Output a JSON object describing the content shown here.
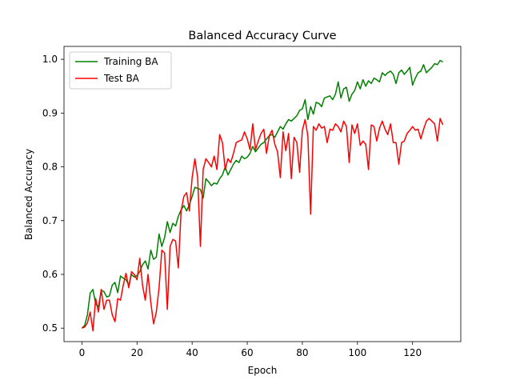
{
  "chart_data": {
    "type": "line",
    "title": "Balanced Accuracy Curve",
    "xlabel": "Epoch",
    "ylabel": "Balanced Accuracy",
    "xlim": [
      -6.5,
      137.5
    ],
    "ylim": [
      0.475,
      1.024
    ],
    "xticks": [
      "0",
      "20",
      "40",
      "60",
      "80",
      "100",
      "120"
    ],
    "yticks": [
      "0.5",
      "0.6",
      "0.7",
      "0.8",
      "0.9",
      "1.0"
    ],
    "grid": false,
    "legend": "upper-left",
    "x": [
      0,
      1,
      2,
      3,
      4,
      5,
      6,
      7,
      8,
      9,
      10,
      11,
      12,
      13,
      14,
      15,
      16,
      17,
      18,
      19,
      20,
      21,
      22,
      23,
      24,
      25,
      26,
      27,
      28,
      29,
      30,
      31,
      32,
      33,
      34,
      35,
      36,
      37,
      38,
      39,
      40,
      41,
      42,
      43,
      44,
      45,
      46,
      47,
      48,
      49,
      50,
      51,
      52,
      53,
      54,
      55,
      56,
      57,
      58,
      59,
      60,
      61,
      62,
      63,
      64,
      65,
      66,
      67,
      68,
      69,
      70,
      71,
      72,
      73,
      74,
      75,
      76,
      77,
      78,
      79,
      80,
      81,
      82,
      83,
      84,
      85,
      86,
      87,
      88,
      89,
      90,
      91,
      92,
      93,
      94,
      95,
      96,
      97,
      98,
      99,
      100,
      101,
      102,
      103,
      104,
      105,
      106,
      107,
      108,
      109,
      110,
      111,
      112,
      113,
      114,
      115,
      116,
      117,
      118,
      119,
      120,
      121,
      122,
      123,
      124,
      125,
      126,
      127,
      128,
      129,
      130,
      131
    ],
    "series": [
      {
        "name": "Training BA",
        "color": "#008000",
        "values": [
          0.5,
          0.505,
          0.525,
          0.565,
          0.572,
          0.545,
          0.54,
          0.57,
          0.568,
          0.558,
          0.56,
          0.58,
          0.585,
          0.566,
          0.597,
          0.593,
          0.59,
          0.58,
          0.6,
          0.595,
          0.598,
          0.605,
          0.618,
          0.625,
          0.61,
          0.645,
          0.628,
          0.632,
          0.675,
          0.652,
          0.668,
          0.698,
          0.678,
          0.695,
          0.69,
          0.708,
          0.72,
          0.728,
          0.718,
          0.73,
          0.745,
          0.762,
          0.76,
          0.758,
          0.742,
          0.778,
          0.772,
          0.765,
          0.77,
          0.768,
          0.778,
          0.785,
          0.8,
          0.785,
          0.795,
          0.805,
          0.812,
          0.808,
          0.82,
          0.815,
          0.818,
          0.825,
          0.838,
          0.828,
          0.835,
          0.842,
          0.845,
          0.852,
          0.858,
          0.86,
          0.855,
          0.865,
          0.875,
          0.87,
          0.88,
          0.888,
          0.885,
          0.89,
          0.895,
          0.905,
          0.908,
          0.925,
          0.888,
          0.912,
          0.898,
          0.92,
          0.918,
          0.912,
          0.928,
          0.93,
          0.932,
          0.925,
          0.935,
          0.958,
          0.928,
          0.945,
          0.948,
          0.922,
          0.935,
          0.942,
          0.958,
          0.945,
          0.962,
          0.95,
          0.96,
          0.955,
          0.965,
          0.962,
          0.958,
          0.975,
          0.97,
          0.975,
          0.978,
          0.972,
          0.955,
          0.975,
          0.98,
          0.972,
          0.978,
          0.985,
          0.952,
          0.965,
          0.975,
          0.978,
          0.99,
          0.975,
          0.98,
          0.985,
          0.992,
          0.99,
          0.998,
          0.995
        ]
      },
      {
        "name": "Test BA",
        "color": "#ff0000",
        "values": [
          0.5,
          0.502,
          0.51,
          0.53,
          0.495,
          0.555,
          0.53,
          0.572,
          0.535,
          0.552,
          0.552,
          0.525,
          0.512,
          0.555,
          0.552,
          0.58,
          0.602,
          0.575,
          0.605,
          0.6,
          0.59,
          0.63,
          0.58,
          0.552,
          0.6,
          0.548,
          0.508,
          0.53,
          0.575,
          0.645,
          0.64,
          0.535,
          0.652,
          0.665,
          0.662,
          0.612,
          0.718,
          0.745,
          0.752,
          0.718,
          0.78,
          0.815,
          0.78,
          0.652,
          0.795,
          0.815,
          0.808,
          0.8,
          0.82,
          0.795,
          0.86,
          0.845,
          0.795,
          0.815,
          0.808,
          0.825,
          0.845,
          0.848,
          0.85,
          0.865,
          0.852,
          0.832,
          0.88,
          0.832,
          0.848,
          0.862,
          0.87,
          0.825,
          0.858,
          0.868,
          0.842,
          0.828,
          0.78,
          0.865,
          0.83,
          0.862,
          0.778,
          0.855,
          0.845,
          0.79,
          0.868,
          0.888,
          0.858,
          0.712,
          0.875,
          0.868,
          0.88,
          0.872,
          0.875,
          0.845,
          0.87,
          0.868,
          0.88,
          0.875,
          0.865,
          0.885,
          0.875,
          0.808,
          0.878,
          0.862,
          0.88,
          0.84,
          0.848,
          0.842,
          0.795,
          0.878,
          0.875,
          0.848,
          0.872,
          0.885,
          0.87,
          0.86,
          0.88,
          0.845,
          0.845,
          0.805,
          0.845,
          0.848,
          0.862,
          0.868,
          0.875,
          0.868,
          0.87,
          0.852,
          0.87,
          0.885,
          0.89,
          0.885,
          0.88,
          0.848,
          0.89,
          0.878
        ]
      }
    ]
  }
}
